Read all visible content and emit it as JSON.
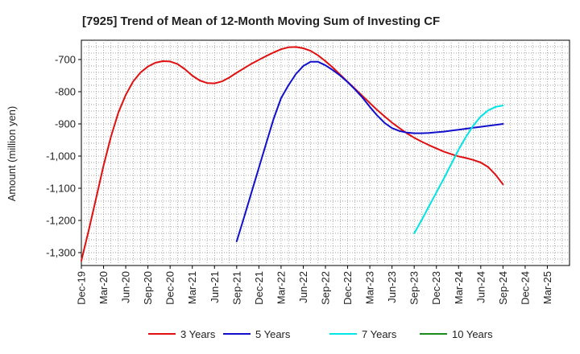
{
  "chart_data": {
    "type": "line",
    "title": "[7925]  Trend of Mean of 12-Month Moving Sum of Investing CF",
    "xlabel": "",
    "ylabel": "Amount (million yen)",
    "ylim": [
      -1340,
      -640
    ],
    "yticks": [
      -700,
      -800,
      -900,
      -1000,
      -1100,
      -1200,
      -1300
    ],
    "ytick_labels": [
      "-700",
      "-800",
      "-900",
      "-1,000",
      "-1,100",
      "-1,200",
      "-1,300"
    ],
    "x_start": "Dec-19",
    "x_tick_labels": [
      "Dec-19",
      "Mar-20",
      "Jun-20",
      "Sep-20",
      "Dec-20",
      "Mar-21",
      "Jun-21",
      "Sep-21",
      "Dec-21",
      "Mar-22",
      "Jun-22",
      "Sep-22",
      "Dec-22",
      "Mar-23",
      "Jun-23",
      "Sep-23",
      "Dec-23",
      "Mar-24",
      "Jun-24",
      "Sep-24",
      "Dec-24",
      "Mar-25"
    ],
    "grid": true,
    "legend_position": "bottom",
    "series": [
      {
        "name": "3 Years",
        "color": "#e01010",
        "x": [
          "Dec-19",
          "Jan-20",
          "Feb-20",
          "Mar-20",
          "Apr-20",
          "May-20",
          "Jun-20",
          "Jul-20",
          "Aug-20",
          "Sep-20",
          "Oct-20",
          "Nov-20",
          "Dec-20",
          "Jan-21",
          "Feb-21",
          "Mar-21",
          "Apr-21",
          "May-21",
          "Jun-21",
          "Jul-21",
          "Aug-21",
          "Sep-21",
          "Oct-21",
          "Nov-21",
          "Dec-21",
          "Jan-22",
          "Feb-22",
          "Mar-22",
          "Apr-22",
          "May-22",
          "Jun-22",
          "Jul-22",
          "Aug-22",
          "Sep-22",
          "Oct-22",
          "Nov-22",
          "Dec-22",
          "Jan-23",
          "Feb-23",
          "Mar-23",
          "Apr-23",
          "May-23",
          "Jun-23",
          "Jul-23",
          "Aug-23",
          "Sep-23",
          "Oct-23",
          "Nov-23",
          "Dec-23",
          "Jan-24",
          "Feb-24",
          "Mar-24",
          "Apr-24",
          "May-24",
          "Jun-24",
          "Jul-24",
          "Aug-24",
          "Sep-24"
        ],
        "values": [
          -1325,
          -1230,
          -1130,
          -1030,
          -940,
          -865,
          -810,
          -768,
          -740,
          -722,
          -710,
          -705,
          -706,
          -714,
          -730,
          -750,
          -765,
          -773,
          -774,
          -768,
          -756,
          -741,
          -727,
          -713,
          -701,
          -689,
          -678,
          -668,
          -662,
          -661,
          -665,
          -673,
          -687,
          -705,
          -725,
          -747,
          -769,
          -791,
          -813,
          -835,
          -857,
          -877,
          -896,
          -913,
          -929,
          -943,
          -955,
          -966,
          -976,
          -986,
          -994,
          -1001,
          -1006,
          -1012,
          -1020,
          -1034,
          -1058,
          -1088
        ]
      },
      {
        "name": "5 Years",
        "color": "#1010cc",
        "x": [
          "Sep-21",
          "Oct-21",
          "Nov-21",
          "Dec-21",
          "Jan-22",
          "Feb-22",
          "Mar-22",
          "Apr-22",
          "May-22",
          "Jun-22",
          "Jul-22",
          "Aug-22",
          "Sep-22",
          "Oct-22",
          "Nov-22",
          "Dec-22",
          "Jan-23",
          "Feb-23",
          "Mar-23",
          "Apr-23",
          "May-23",
          "Jun-23",
          "Jul-23",
          "Aug-23",
          "Sep-23",
          "Oct-23",
          "Nov-23",
          "Dec-23",
          "Jan-24",
          "Feb-24",
          "Mar-24",
          "Apr-24",
          "May-24",
          "Jun-24",
          "Jul-24",
          "Aug-24",
          "Sep-24"
        ],
        "values": [
          -1265,
          -1190,
          -1113,
          -1036,
          -960,
          -884,
          -820,
          -780,
          -745,
          -720,
          -707,
          -707,
          -718,
          -733,
          -750,
          -770,
          -793,
          -818,
          -847,
          -874,
          -897,
          -913,
          -922,
          -927,
          -929,
          -929,
          -928,
          -926,
          -924,
          -921,
          -918,
          -915,
          -912,
          -909,
          -906,
          -903,
          -900
        ]
      },
      {
        "name": "7 Years",
        "color": "#00e5e5",
        "x": [
          "Sep-23",
          "Oct-23",
          "Nov-23",
          "Dec-23",
          "Jan-24",
          "Feb-24",
          "Mar-24",
          "Apr-24",
          "May-24",
          "Jun-24",
          "Jul-24",
          "Aug-24",
          "Sep-24"
        ],
        "values": [
          -1240,
          -1199,
          -1156,
          -1113,
          -1070,
          -1025,
          -980,
          -940,
          -905,
          -877,
          -858,
          -847,
          -843
        ]
      },
      {
        "name": "10 Years",
        "color": "#1a8a1a",
        "x": [],
        "values": []
      }
    ]
  }
}
